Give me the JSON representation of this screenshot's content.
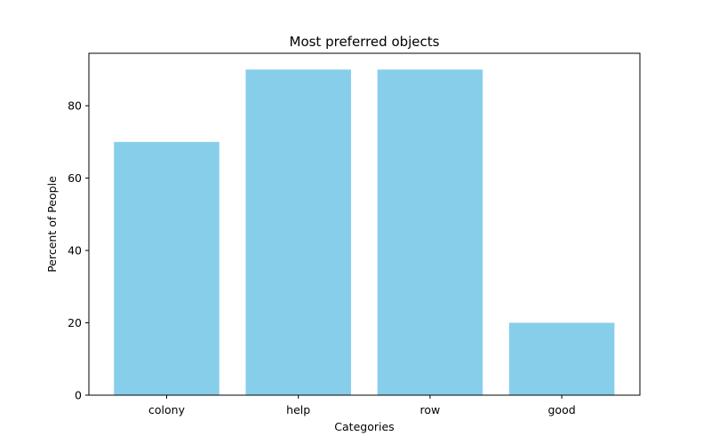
{
  "chart_data": {
    "type": "bar",
    "title": "Most preferred objects",
    "xlabel": "Categories",
    "ylabel": "Percent of People",
    "categories": [
      "colony",
      "help",
      "row",
      "good"
    ],
    "values": [
      70,
      90,
      90,
      20
    ],
    "ylim": [
      0,
      94.5
    ],
    "yticks": [
      0,
      20,
      40,
      60,
      80
    ],
    "bar_color": "#87CEEB",
    "grid": false,
    "legend": "none"
  }
}
